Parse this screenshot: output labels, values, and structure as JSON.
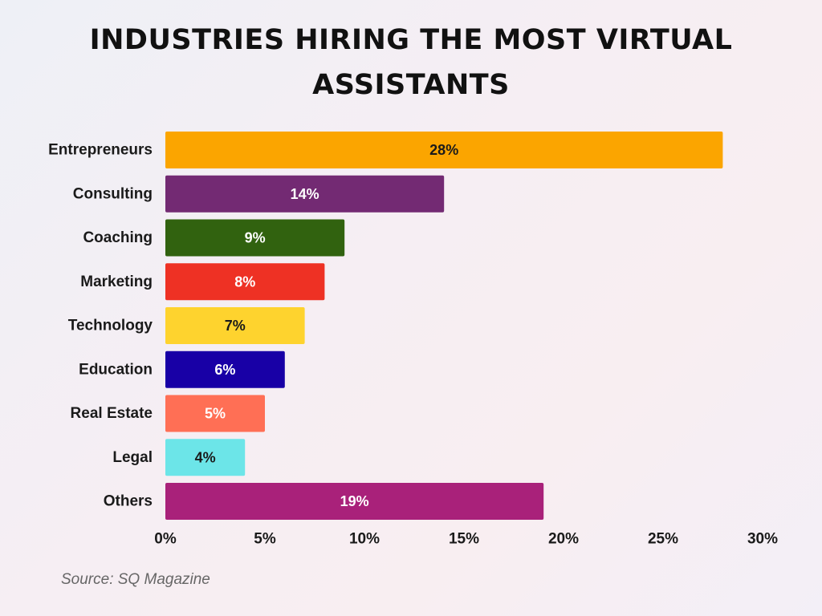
{
  "chart_data": {
    "type": "bar",
    "orientation": "horizontal",
    "title": "INDUSTRIES HIRING THE MOST VIRTUAL ASSISTANTS",
    "categories": [
      "Entrepreneurs",
      "Consulting",
      "Coaching",
      "Marketing",
      "Technology",
      "Education",
      "Real Estate",
      "Legal",
      "Others"
    ],
    "values": [
      28,
      14,
      9,
      8,
      7,
      6,
      5,
      4,
      19
    ],
    "data_labels": [
      "28%",
      "14%",
      "9%",
      "8%",
      "7%",
      "6%",
      "5%",
      "4%",
      "19%"
    ],
    "bar_colors": [
      "#FBA500",
      "#732A73",
      "#31620F",
      "#EE3124",
      "#FED32E",
      "#1800A6",
      "#FF6F55",
      "#6CE5E8",
      "#A9217A"
    ],
    "label_colors": [
      "#1a1a1a",
      "#ffffff",
      "#ffffff",
      "#ffffff",
      "#1a1a1a",
      "#ffffff",
      "#ffffff",
      "#1a1a1a",
      "#ffffff"
    ],
    "x_ticks": [
      0,
      5,
      10,
      15,
      20,
      25,
      30
    ],
    "x_tick_labels": [
      "0%",
      "5%",
      "10%",
      "15%",
      "20%",
      "25%",
      "30%"
    ],
    "xlim": [
      0,
      30
    ],
    "xlabel": "",
    "ylabel": "",
    "grid": false,
    "legend": "none"
  },
  "source": "Source: SQ Magazine"
}
